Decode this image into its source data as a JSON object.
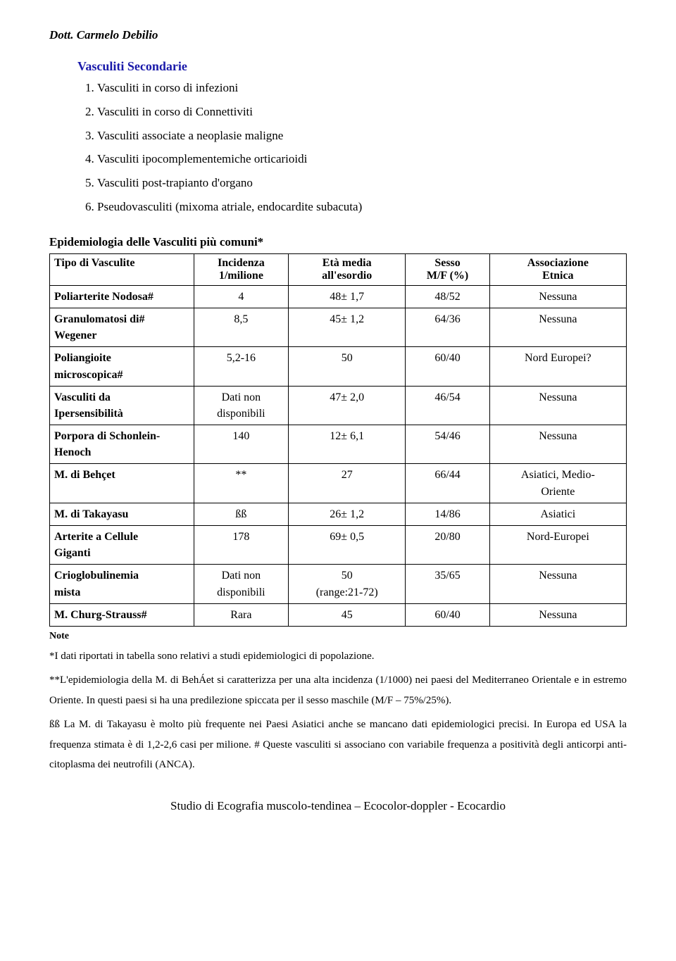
{
  "author": "Dott. Carmelo Debilio",
  "section_title": "Vasculiti Secondarie",
  "list_items": [
    "Vasculiti in corso di infezioni",
    "Vasculiti in corso di Connettiviti",
    "Vasculiti associate a neoplasie maligne",
    "Vasculiti ipocomplementemiche orticarioidi",
    "Vasculiti post-trapianto d'organo",
    "Pseudovasculiti (mixoma atriale, endocardite subacuta)"
  ],
  "table_title": "Epidemiologia delle Vasculiti più comuni*",
  "table": {
    "headers": {
      "type": "Tipo di Vasculite",
      "incidence_top": "Incidenza",
      "incidence_bottom": "1/milione",
      "age_top": "Età media",
      "age_bottom": "all'esordio",
      "sex_top": "Sesso",
      "sex_bottom": "M/F (%)",
      "assoc_top": "Associazione",
      "assoc_bottom": "Etnica"
    },
    "rows": [
      {
        "type": "Poliarterite Nodosa#",
        "incidence": "4",
        "age": "48± 1,7",
        "sex": "48/52",
        "assoc": "Nessuna"
      },
      {
        "type": "Granulomatosi di#\nWegener",
        "incidence": "8,5",
        "age": "45± 1,2",
        "sex": "64/36",
        "assoc": "Nessuna"
      },
      {
        "type": "Poliangioite\nmicroscopica#",
        "incidence": "5,2-16",
        "age": "50",
        "sex": "60/40",
        "assoc": "Nord Europei?"
      },
      {
        "type": "Vasculiti da\nIpersensibilità",
        "incidence": "Dati non\ndisponibili",
        "age": "47± 2,0",
        "sex": "46/54",
        "assoc": "Nessuna"
      },
      {
        "type": "Porpora di Schonlein-\nHenoch",
        "incidence": "140",
        "age": "12± 6,1",
        "sex": "54/46",
        "assoc": "Nessuna"
      },
      {
        "type": "M. di Behçet",
        "incidence": "**",
        "age": "27",
        "sex": "66/44",
        "assoc": "Asiatici, Medio-\nOriente"
      },
      {
        "type": "M. di Takayasu",
        "incidence": "ßß",
        "age": "26± 1,2",
        "sex": "14/86",
        "assoc": "Asiatici"
      },
      {
        "type": "Arterite a Cellule\nGiganti",
        "incidence": "178",
        "age": "69± 0,5",
        "sex": "20/80",
        "assoc": "Nord-Europei"
      },
      {
        "type": "Crioglobulinemia\nmista",
        "incidence": "Dati non\ndisponibili",
        "age": "50\n(range:21-72)",
        "sex": "35/65",
        "assoc": "Nessuna"
      },
      {
        "type": "M. Churg-Strauss#",
        "incidence": "Rara",
        "age": "45",
        "sex": "60/40",
        "assoc": "Nessuna"
      }
    ]
  },
  "notes_label": "Note",
  "notes": [
    "*I dati riportati in tabella sono relativi a studi epidemiologici di popolazione.",
    "**L'epidemiologia della M. di BehÁet si caratterizza per una alta incidenza (1/1000) nei paesi del Mediterraneo Orientale e in estremo Oriente. In questi paesi si ha una predilezione spiccata per il sesso maschile (M/F – 75%/25%).",
    "ßß La M. di Takayasu è molto più frequente nei Paesi Asiatici anche se mancano dati epidemiologici precisi. In Europa ed USA la frequenza stimata è di 1,2-2,6 casi per milione. # Queste vasculiti si associano con variabile frequenza a positività degli anticorpi anti-citoplasma dei neutrofili (ANCA)."
  ],
  "footer": "Studio di Ecografia muscolo-tendinea – Ecocolor-doppler - Ecocardio"
}
